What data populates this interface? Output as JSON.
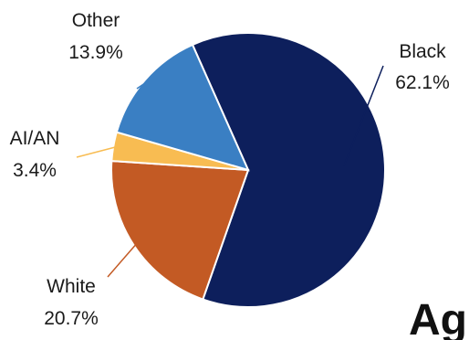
{
  "chart_data": {
    "type": "pie",
    "slices": [
      {
        "label": "Black",
        "value": 62.1,
        "value_label": "62.1%",
        "color": "#0d1f5c"
      },
      {
        "label": "White",
        "value": 20.7,
        "value_label": "20.7%",
        "color": "#c35a24"
      },
      {
        "label": "AI/AN",
        "value": 3.4,
        "value_label": "3.4%",
        "color": "#f8bc52"
      },
      {
        "label": "Other",
        "value": 13.9,
        "value_label": "13.9%",
        "color": "#3a7fc3"
      }
    ],
    "start_angle_deg_clockwise_from_top": -24,
    "slice_border_color": "#ffffff",
    "legend": "none (leader-line labels)"
  },
  "page_fragment_text": "Ag"
}
